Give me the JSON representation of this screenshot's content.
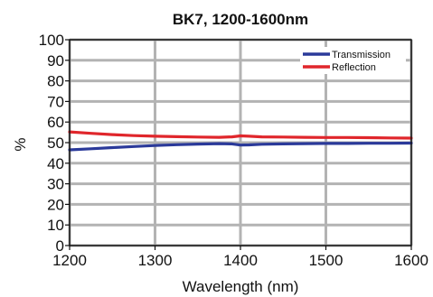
{
  "chart_data": {
    "type": "line",
    "title": "BK7, 1200-1600nm",
    "xlabel": "Wavelength (nm)",
    "ylabel": "%",
    "xlim": [
      1200,
      1600
    ],
    "ylim": [
      0,
      100
    ],
    "x_ticks": [
      1200,
      1300,
      1400,
      1500,
      1600
    ],
    "y_ticks": [
      0,
      10,
      20,
      30,
      40,
      50,
      60,
      70,
      80,
      90,
      100
    ],
    "grid": true,
    "legend_position": "top-right",
    "series": [
      {
        "name": "Transmission",
        "color": "#2b3a9a",
        "x": [
          1200,
          1225,
          1250,
          1275,
          1300,
          1325,
          1350,
          1375,
          1390,
          1400,
          1410,
          1425,
          1450,
          1475,
          1500,
          1525,
          1550,
          1575,
          1600
        ],
        "y": [
          46.5,
          47.0,
          47.6,
          48.1,
          48.6,
          49.0,
          49.3,
          49.5,
          49.4,
          48.8,
          48.9,
          49.2,
          49.4,
          49.5,
          49.6,
          49.6,
          49.7,
          49.7,
          49.8
        ]
      },
      {
        "name": "Reflection",
        "color": "#e0262b",
        "x": [
          1200,
          1225,
          1250,
          1275,
          1300,
          1325,
          1350,
          1375,
          1390,
          1400,
          1410,
          1425,
          1450,
          1475,
          1500,
          1525,
          1550,
          1575,
          1600
        ],
        "y": [
          55.2,
          54.5,
          53.9,
          53.4,
          53.1,
          52.9,
          52.7,
          52.6,
          52.8,
          53.3,
          53.1,
          52.8,
          52.7,
          52.6,
          52.5,
          52.5,
          52.4,
          52.3,
          52.2
        ]
      }
    ]
  }
}
